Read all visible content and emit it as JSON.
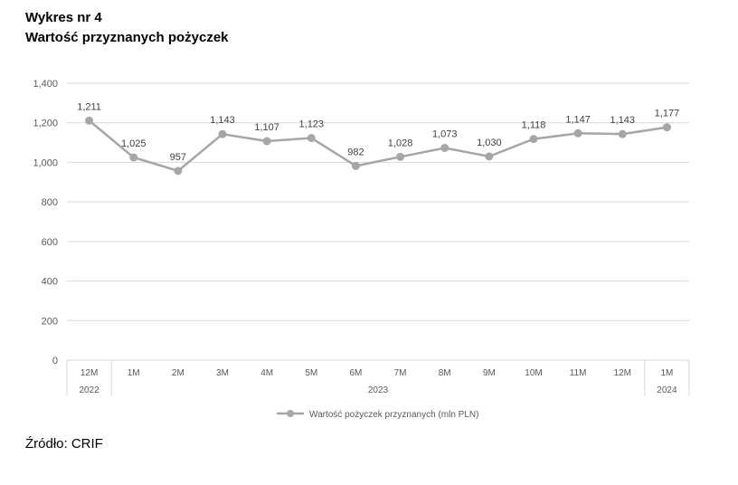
{
  "heading": {
    "line1": "Wykres nr 4",
    "line2": "Wartość przyznanych pożyczek"
  },
  "source": "Źródło: CRIF",
  "chart_data": {
    "type": "line",
    "title": "",
    "xlabel": "",
    "ylabel": "",
    "ylim": [
      0,
      1400
    ],
    "yticks": [
      "0",
      "200",
      "400",
      "600",
      "800",
      "1,000",
      "1,200",
      "1,400"
    ],
    "grid": true,
    "legend_position": "bottom",
    "categories": [
      "12M",
      "1M",
      "2M",
      "3M",
      "4M",
      "5M",
      "6M",
      "7M",
      "8M",
      "9M",
      "10M",
      "11M",
      "12M",
      "1M"
    ],
    "year_groups": [
      {
        "label": "2022",
        "count": 1
      },
      {
        "label": "2023",
        "count": 12
      },
      {
        "label": "2024",
        "count": 1
      }
    ],
    "series": [
      {
        "name": "Wartość pożyczek przyznanych (mln PLN)",
        "color": "#a6a6a6",
        "values": [
          1211,
          1025,
          957,
          1143,
          1107,
          1123,
          982,
          1028,
          1073,
          1030,
          1118,
          1147,
          1143,
          1177
        ],
        "labels": [
          "1,211",
          "1,025",
          "957",
          "1,143",
          "1,107",
          "1,123",
          "982",
          "1,028",
          "1,073",
          "1,030",
          "1,118",
          "1,147",
          "1,143",
          "1,177"
        ]
      }
    ]
  }
}
